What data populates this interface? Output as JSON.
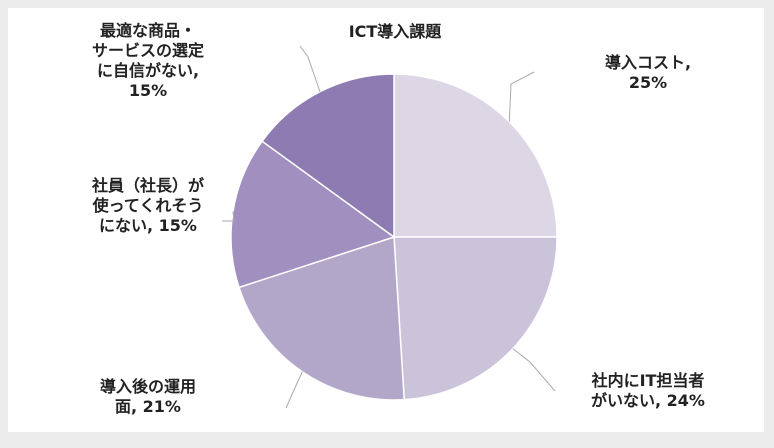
{
  "chart_data": {
    "type": "pie",
    "title": "ICT導入課題",
    "slices": [
      {
        "label_lines": [
          "導入コスト,",
          "25%"
        ],
        "value": 25,
        "color": "#ddd6e5"
      },
      {
        "label_lines": [
          "社内にIT担当者",
          "がいない, 24%"
        ],
        "value": 24,
        "color": "#cbc3d9"
      },
      {
        "label_lines": [
          "導入後の運用",
          "面, 21%"
        ],
        "value": 21,
        "color": "#b3a7c9"
      },
      {
        "label_lines": [
          "社員（社長）が",
          "使ってくれそう",
          "にない, 15%"
        ],
        "value": 15,
        "color": "#a08fbf"
      },
      {
        "label_lines": [
          "最適な商品・",
          "サービスの選定",
          "に自信がない,",
          "15%"
        ],
        "value": 15,
        "color": "#8d7bb1"
      }
    ],
    "legend": "none"
  }
}
